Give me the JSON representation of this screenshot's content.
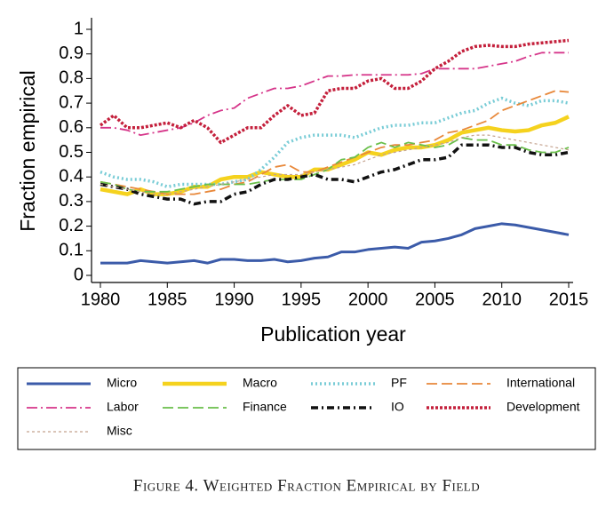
{
  "chart_data": {
    "type": "line",
    "caption": "Figure 4. Weighted Fraction Empirical by Field",
    "xlabel": "Publication year",
    "ylabel": "Fraction empirical",
    "xlim": [
      1980,
      2015
    ],
    "xticks": [
      1980,
      1985,
      1990,
      1995,
      2000,
      2005,
      2010,
      2015
    ],
    "ylim": [
      0,
      1
    ],
    "yticks": [
      0,
      0.1,
      0.2,
      0.3,
      0.4,
      0.5,
      0.6,
      0.7,
      0.8,
      0.9,
      1
    ],
    "grid": false,
    "x": [
      1980,
      1981,
      1982,
      1983,
      1984,
      1985,
      1986,
      1987,
      1988,
      1989,
      1990,
      1991,
      1992,
      1993,
      1994,
      1995,
      1996,
      1997,
      1998,
      1999,
      2000,
      2001,
      2002,
      2003,
      2004,
      2005,
      2006,
      2007,
      2008,
      2009,
      2010,
      2011,
      2012,
      2013,
      2014,
      2015
    ],
    "series": [
      {
        "name": "Micro",
        "color": "#3b5ba9",
        "style": "solid",
        "values": [
          0.05,
          0.05,
          0.05,
          0.06,
          0.055,
          0.05,
          0.055,
          0.06,
          0.05,
          0.065,
          0.065,
          0.06,
          0.06,
          0.065,
          0.055,
          0.06,
          0.07,
          0.075,
          0.095,
          0.095,
          0.105,
          0.11,
          0.115,
          0.11,
          0.135,
          0.14,
          0.15,
          0.165,
          0.19,
          0.2,
          0.21,
          0.205,
          0.195,
          0.185,
          0.175,
          0.165
        ]
      },
      {
        "name": "Macro",
        "color": "#f5d21e",
        "style": "thick",
        "values": [
          0.35,
          0.34,
          0.33,
          0.35,
          0.33,
          0.33,
          0.34,
          0.36,
          0.36,
          0.39,
          0.4,
          0.4,
          0.42,
          0.41,
          0.4,
          0.4,
          0.43,
          0.43,
          0.45,
          0.47,
          0.5,
          0.49,
          0.51,
          0.52,
          0.52,
          0.53,
          0.55,
          0.58,
          0.59,
          0.6,
          0.59,
          0.585,
          0.59,
          0.61,
          0.62,
          0.645
        ]
      },
      {
        "name": "PF",
        "color": "#78ccd6",
        "style": "dot",
        "values": [
          0.42,
          0.4,
          0.39,
          0.39,
          0.38,
          0.36,
          0.37,
          0.37,
          0.37,
          0.37,
          0.38,
          0.39,
          0.43,
          0.48,
          0.54,
          0.56,
          0.57,
          0.57,
          0.57,
          0.56,
          0.58,
          0.6,
          0.61,
          0.61,
          0.62,
          0.62,
          0.64,
          0.66,
          0.67,
          0.7,
          0.72,
          0.7,
          0.69,
          0.71,
          0.71,
          0.7
        ]
      },
      {
        "name": "International",
        "color": "#e8883a",
        "style": "longdash",
        "values": [
          0.38,
          0.37,
          0.36,
          0.35,
          0.34,
          0.33,
          0.33,
          0.33,
          0.34,
          0.35,
          0.37,
          0.38,
          0.41,
          0.44,
          0.45,
          0.42,
          0.42,
          0.44,
          0.46,
          0.48,
          0.5,
          0.52,
          0.53,
          0.53,
          0.54,
          0.55,
          0.58,
          0.59,
          0.61,
          0.63,
          0.67,
          0.69,
          0.71,
          0.73,
          0.75,
          0.745
        ]
      },
      {
        "name": "Labor",
        "color": "#d6368a",
        "style": "dashdot",
        "values": [
          0.6,
          0.6,
          0.59,
          0.57,
          0.58,
          0.59,
          0.6,
          0.62,
          0.65,
          0.67,
          0.68,
          0.72,
          0.74,
          0.76,
          0.76,
          0.77,
          0.79,
          0.81,
          0.81,
          0.815,
          0.815,
          0.815,
          0.815,
          0.815,
          0.82,
          0.84,
          0.84,
          0.84,
          0.84,
          0.85,
          0.86,
          0.87,
          0.89,
          0.905,
          0.905,
          0.905
        ]
      },
      {
        "name": "Finance",
        "color": "#6abf4b",
        "style": "longdash",
        "values": [
          0.38,
          0.37,
          0.35,
          0.34,
          0.34,
          0.34,
          0.35,
          0.36,
          0.37,
          0.37,
          0.37,
          0.37,
          0.38,
          0.39,
          0.39,
          0.39,
          0.41,
          0.43,
          0.47,
          0.48,
          0.52,
          0.54,
          0.52,
          0.54,
          0.53,
          0.52,
          0.53,
          0.56,
          0.55,
          0.55,
          0.53,
          0.53,
          0.51,
          0.5,
          0.5,
          0.52
        ]
      },
      {
        "name": "IO",
        "color": "#111111",
        "style": "dashdotthick",
        "values": [
          0.37,
          0.36,
          0.35,
          0.33,
          0.32,
          0.31,
          0.31,
          0.29,
          0.3,
          0.3,
          0.33,
          0.34,
          0.37,
          0.39,
          0.39,
          0.4,
          0.41,
          0.39,
          0.39,
          0.38,
          0.4,
          0.42,
          0.43,
          0.45,
          0.47,
          0.47,
          0.48,
          0.53,
          0.53,
          0.53,
          0.52,
          0.52,
          0.5,
          0.49,
          0.49,
          0.5
        ]
      },
      {
        "name": "Development",
        "color": "#c4203c",
        "style": "dotthick",
        "values": [
          0.61,
          0.65,
          0.6,
          0.6,
          0.61,
          0.62,
          0.6,
          0.63,
          0.6,
          0.54,
          0.57,
          0.6,
          0.6,
          0.65,
          0.69,
          0.65,
          0.66,
          0.75,
          0.76,
          0.76,
          0.79,
          0.8,
          0.76,
          0.76,
          0.79,
          0.84,
          0.87,
          0.91,
          0.93,
          0.935,
          0.93,
          0.93,
          0.94,
          0.945,
          0.95,
          0.955
        ]
      },
      {
        "name": "Misc",
        "color": "#c4a28e",
        "style": "finedash",
        "values": [
          0.37,
          0.36,
          0.35,
          0.34,
          0.33,
          0.33,
          0.34,
          0.35,
          0.36,
          0.37,
          0.38,
          0.39,
          0.4,
          0.41,
          0.41,
          0.41,
          0.42,
          0.43,
          0.44,
          0.45,
          0.47,
          0.49,
          0.5,
          0.51,
          0.52,
          0.53,
          0.54,
          0.56,
          0.57,
          0.57,
          0.56,
          0.55,
          0.54,
          0.53,
          0.52,
          0.51
        ]
      }
    ]
  }
}
